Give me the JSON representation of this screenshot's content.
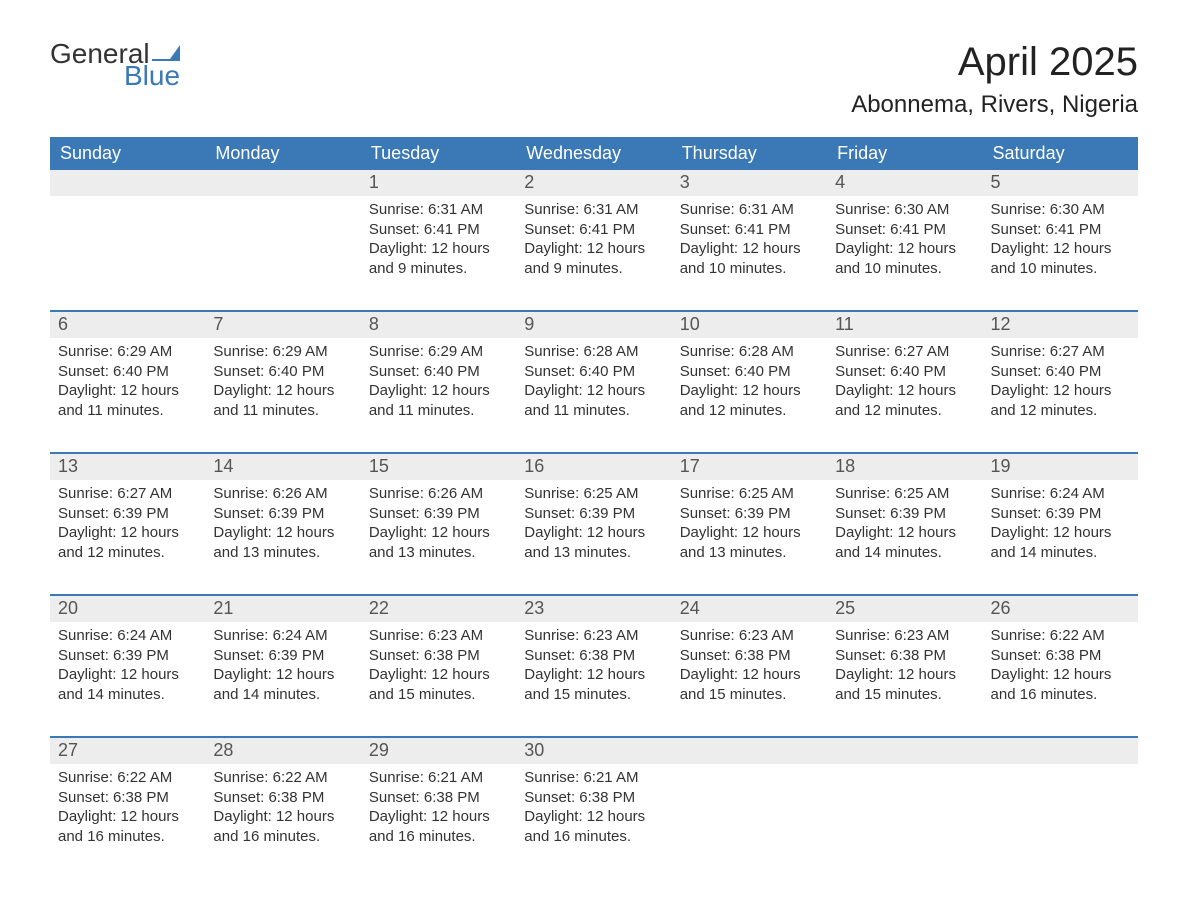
{
  "colors": {
    "header_bg": "#3a78b6",
    "header_text": "#ffffff",
    "daynum_bg": "#ededed",
    "text": "#333333",
    "week_border": "#3a78b6",
    "logo_blue": "#3a78b6",
    "background": "#ffffff"
  },
  "typography": {
    "month_title_fontsize": 40,
    "location_fontsize": 24,
    "day_header_fontsize": 18,
    "daynum_fontsize": 18,
    "body_fontsize": 15,
    "logo_fontsize": 28
  },
  "logo": {
    "text_general": "General",
    "text_blue": "Blue"
  },
  "title": "April 2025",
  "location": "Abonnema, Rivers, Nigeria",
  "day_headers": [
    "Sunday",
    "Monday",
    "Tuesday",
    "Wednesday",
    "Thursday",
    "Friday",
    "Saturday"
  ],
  "weeks": [
    [
      null,
      null,
      {
        "day": "1",
        "sunrise": "Sunrise: 6:31 AM",
        "sunset": "Sunset: 6:41 PM",
        "daylight": "Daylight: 12 hours and 9 minutes."
      },
      {
        "day": "2",
        "sunrise": "Sunrise: 6:31 AM",
        "sunset": "Sunset: 6:41 PM",
        "daylight": "Daylight: 12 hours and 9 minutes."
      },
      {
        "day": "3",
        "sunrise": "Sunrise: 6:31 AM",
        "sunset": "Sunset: 6:41 PM",
        "daylight": "Daylight: 12 hours and 10 minutes."
      },
      {
        "day": "4",
        "sunrise": "Sunrise: 6:30 AM",
        "sunset": "Sunset: 6:41 PM",
        "daylight": "Daylight: 12 hours and 10 minutes."
      },
      {
        "day": "5",
        "sunrise": "Sunrise: 6:30 AM",
        "sunset": "Sunset: 6:41 PM",
        "daylight": "Daylight: 12 hours and 10 minutes."
      }
    ],
    [
      {
        "day": "6",
        "sunrise": "Sunrise: 6:29 AM",
        "sunset": "Sunset: 6:40 PM",
        "daylight": "Daylight: 12 hours and 11 minutes."
      },
      {
        "day": "7",
        "sunrise": "Sunrise: 6:29 AM",
        "sunset": "Sunset: 6:40 PM",
        "daylight": "Daylight: 12 hours and 11 minutes."
      },
      {
        "day": "8",
        "sunrise": "Sunrise: 6:29 AM",
        "sunset": "Sunset: 6:40 PM",
        "daylight": "Daylight: 12 hours and 11 minutes."
      },
      {
        "day": "9",
        "sunrise": "Sunrise: 6:28 AM",
        "sunset": "Sunset: 6:40 PM",
        "daylight": "Daylight: 12 hours and 11 minutes."
      },
      {
        "day": "10",
        "sunrise": "Sunrise: 6:28 AM",
        "sunset": "Sunset: 6:40 PM",
        "daylight": "Daylight: 12 hours and 12 minutes."
      },
      {
        "day": "11",
        "sunrise": "Sunrise: 6:27 AM",
        "sunset": "Sunset: 6:40 PM",
        "daylight": "Daylight: 12 hours and 12 minutes."
      },
      {
        "day": "12",
        "sunrise": "Sunrise: 6:27 AM",
        "sunset": "Sunset: 6:40 PM",
        "daylight": "Daylight: 12 hours and 12 minutes."
      }
    ],
    [
      {
        "day": "13",
        "sunrise": "Sunrise: 6:27 AM",
        "sunset": "Sunset: 6:39 PM",
        "daylight": "Daylight: 12 hours and 12 minutes."
      },
      {
        "day": "14",
        "sunrise": "Sunrise: 6:26 AM",
        "sunset": "Sunset: 6:39 PM",
        "daylight": "Daylight: 12 hours and 13 minutes."
      },
      {
        "day": "15",
        "sunrise": "Sunrise: 6:26 AM",
        "sunset": "Sunset: 6:39 PM",
        "daylight": "Daylight: 12 hours and 13 minutes."
      },
      {
        "day": "16",
        "sunrise": "Sunrise: 6:25 AM",
        "sunset": "Sunset: 6:39 PM",
        "daylight": "Daylight: 12 hours and 13 minutes."
      },
      {
        "day": "17",
        "sunrise": "Sunrise: 6:25 AM",
        "sunset": "Sunset: 6:39 PM",
        "daylight": "Daylight: 12 hours and 13 minutes."
      },
      {
        "day": "18",
        "sunrise": "Sunrise: 6:25 AM",
        "sunset": "Sunset: 6:39 PM",
        "daylight": "Daylight: 12 hours and 14 minutes."
      },
      {
        "day": "19",
        "sunrise": "Sunrise: 6:24 AM",
        "sunset": "Sunset: 6:39 PM",
        "daylight": "Daylight: 12 hours and 14 minutes."
      }
    ],
    [
      {
        "day": "20",
        "sunrise": "Sunrise: 6:24 AM",
        "sunset": "Sunset: 6:39 PM",
        "daylight": "Daylight: 12 hours and 14 minutes."
      },
      {
        "day": "21",
        "sunrise": "Sunrise: 6:24 AM",
        "sunset": "Sunset: 6:39 PM",
        "daylight": "Daylight: 12 hours and 14 minutes."
      },
      {
        "day": "22",
        "sunrise": "Sunrise: 6:23 AM",
        "sunset": "Sunset: 6:38 PM",
        "daylight": "Daylight: 12 hours and 15 minutes."
      },
      {
        "day": "23",
        "sunrise": "Sunrise: 6:23 AM",
        "sunset": "Sunset: 6:38 PM",
        "daylight": "Daylight: 12 hours and 15 minutes."
      },
      {
        "day": "24",
        "sunrise": "Sunrise: 6:23 AM",
        "sunset": "Sunset: 6:38 PM",
        "daylight": "Daylight: 12 hours and 15 minutes."
      },
      {
        "day": "25",
        "sunrise": "Sunrise: 6:23 AM",
        "sunset": "Sunset: 6:38 PM",
        "daylight": "Daylight: 12 hours and 15 minutes."
      },
      {
        "day": "26",
        "sunrise": "Sunrise: 6:22 AM",
        "sunset": "Sunset: 6:38 PM",
        "daylight": "Daylight: 12 hours and 16 minutes."
      }
    ],
    [
      {
        "day": "27",
        "sunrise": "Sunrise: 6:22 AM",
        "sunset": "Sunset: 6:38 PM",
        "daylight": "Daylight: 12 hours and 16 minutes."
      },
      {
        "day": "28",
        "sunrise": "Sunrise: 6:22 AM",
        "sunset": "Sunset: 6:38 PM",
        "daylight": "Daylight: 12 hours and 16 minutes."
      },
      {
        "day": "29",
        "sunrise": "Sunrise: 6:21 AM",
        "sunset": "Sunset: 6:38 PM",
        "daylight": "Daylight: 12 hours and 16 minutes."
      },
      {
        "day": "30",
        "sunrise": "Sunrise: 6:21 AM",
        "sunset": "Sunset: 6:38 PM",
        "daylight": "Daylight: 12 hours and 16 minutes."
      },
      null,
      null,
      null
    ]
  ]
}
